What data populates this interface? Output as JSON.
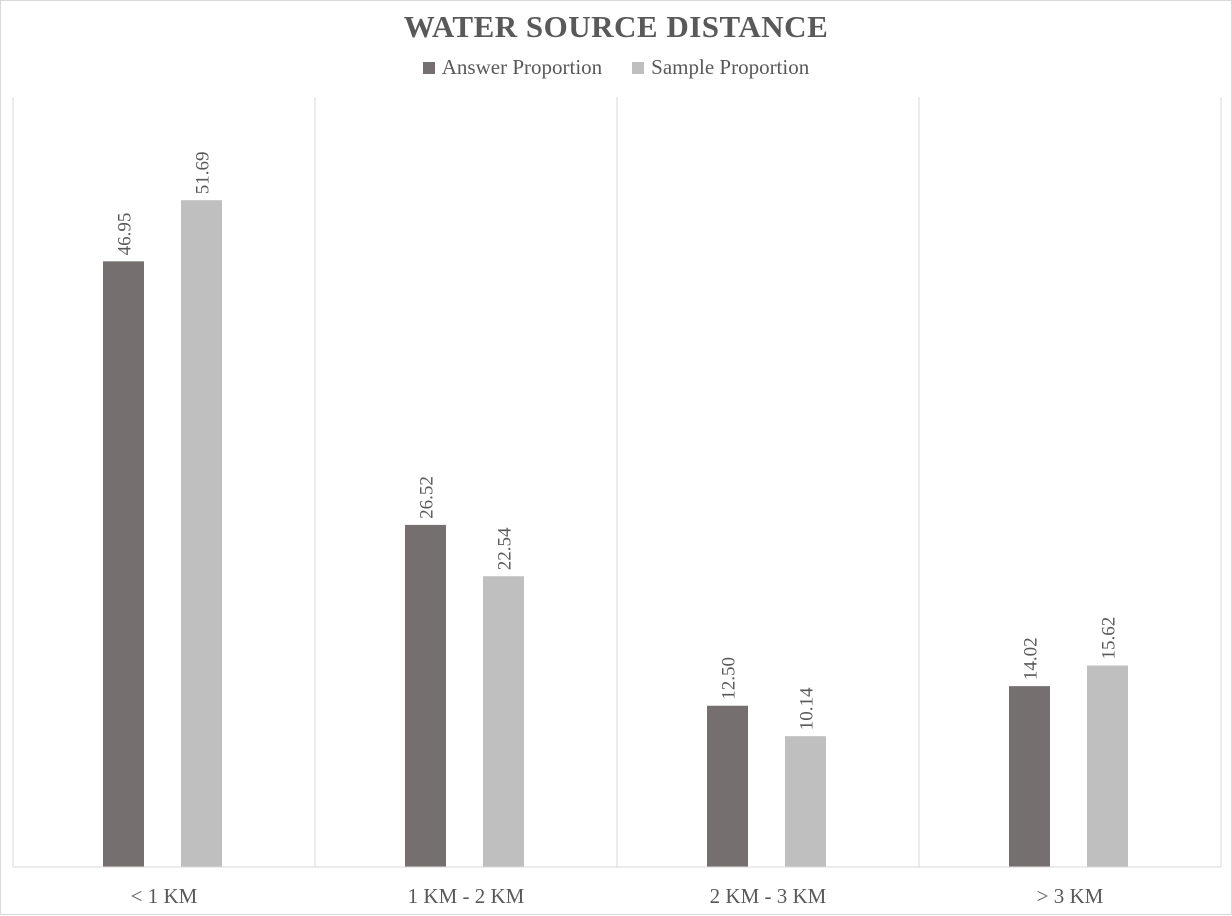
{
  "chart_data": {
    "type": "bar",
    "title": "WATER SOURCE DISTANCE",
    "categories": [
      "< 1 KM",
      "1 KM - 2 KM",
      "2 KM - 3 KM",
      "> 3 KM"
    ],
    "series": [
      {
        "name": "Answer Proportion",
        "values": [
          46.95,
          26.52,
          12.5,
          14.02
        ],
        "labels": [
          "46.95",
          "26.52",
          "12.50",
          "14.02"
        ],
        "color": "#756f6f"
      },
      {
        "name": "Sample Proportion",
        "values": [
          51.69,
          22.54,
          10.14,
          15.62
        ],
        "labels": [
          "51.69",
          "22.54",
          "10.14",
          "15.62"
        ],
        "color": "#bfbfbf"
      }
    ],
    "xlabel": "",
    "ylabel": "",
    "ylim": [
      0,
      60
    ],
    "grid": "vertical category separators",
    "legend": "top-center"
  }
}
